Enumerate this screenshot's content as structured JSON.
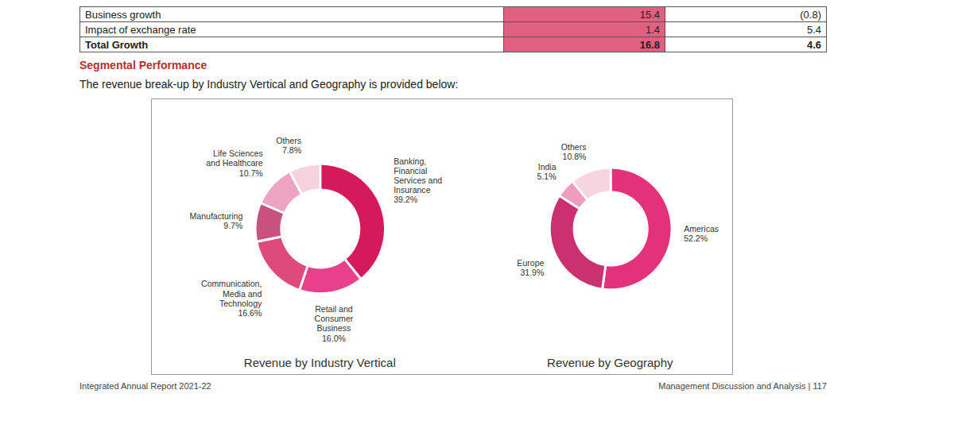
{
  "page": {
    "table": {
      "rows": [
        [
          "Business growth",
          "15.4",
          "(0.8)"
        ],
        [
          "Impact of exchange rate",
          "1.4",
          "5.4"
        ],
        [
          "Total Growth",
          "16.8",
          "4.6"
        ]
      ]
    },
    "heading": "Segmental Performance",
    "intro": "The revenue break-up by Industry Vertical and Geography is provided below:",
    "footer_left": "Integrated Annual Report 2021-22",
    "footer_right": "Management Discussion and Analysis | 117"
  },
  "chart_data": [
    {
      "type": "donut",
      "title": "Revenue by Industry Vertical",
      "categories": [
        "Banking, Financial Services and Insurance",
        "Retail and Consumer Business",
        "Communication, Media and Technology",
        "Manufacturing",
        "Life Sciences and Healthcare",
        "Others"
      ],
      "values": [
        39.2,
        16.0,
        16.6,
        9.7,
        10.7,
        7.8
      ],
      "value_labels": [
        "39.2%",
        "16.0%",
        "16.6%",
        "9.7%",
        "10.7%",
        "7.8%"
      ],
      "colors": [
        "#d41a5b",
        "#e9408c",
        "#df4a7d",
        "#c9517f",
        "#eea3c2",
        "#f6d2de"
      ],
      "data_labels": true,
      "tick_labels": false
    },
    {
      "type": "donut",
      "title": "Revenue by Geography",
      "categories": [
        "Americas",
        "Europe",
        "India",
        "Others"
      ],
      "values": [
        52.2,
        31.9,
        5.1,
        10.8
      ],
      "value_labels": [
        "52.2%",
        "31.9%",
        "5.1%",
        "10.8%"
      ],
      "colors": [
        "#e4317b",
        "#cb3170",
        "#ef9cbf",
        "#f6d4e0"
      ],
      "data_labels": true,
      "tick_labels": false
    }
  ]
}
